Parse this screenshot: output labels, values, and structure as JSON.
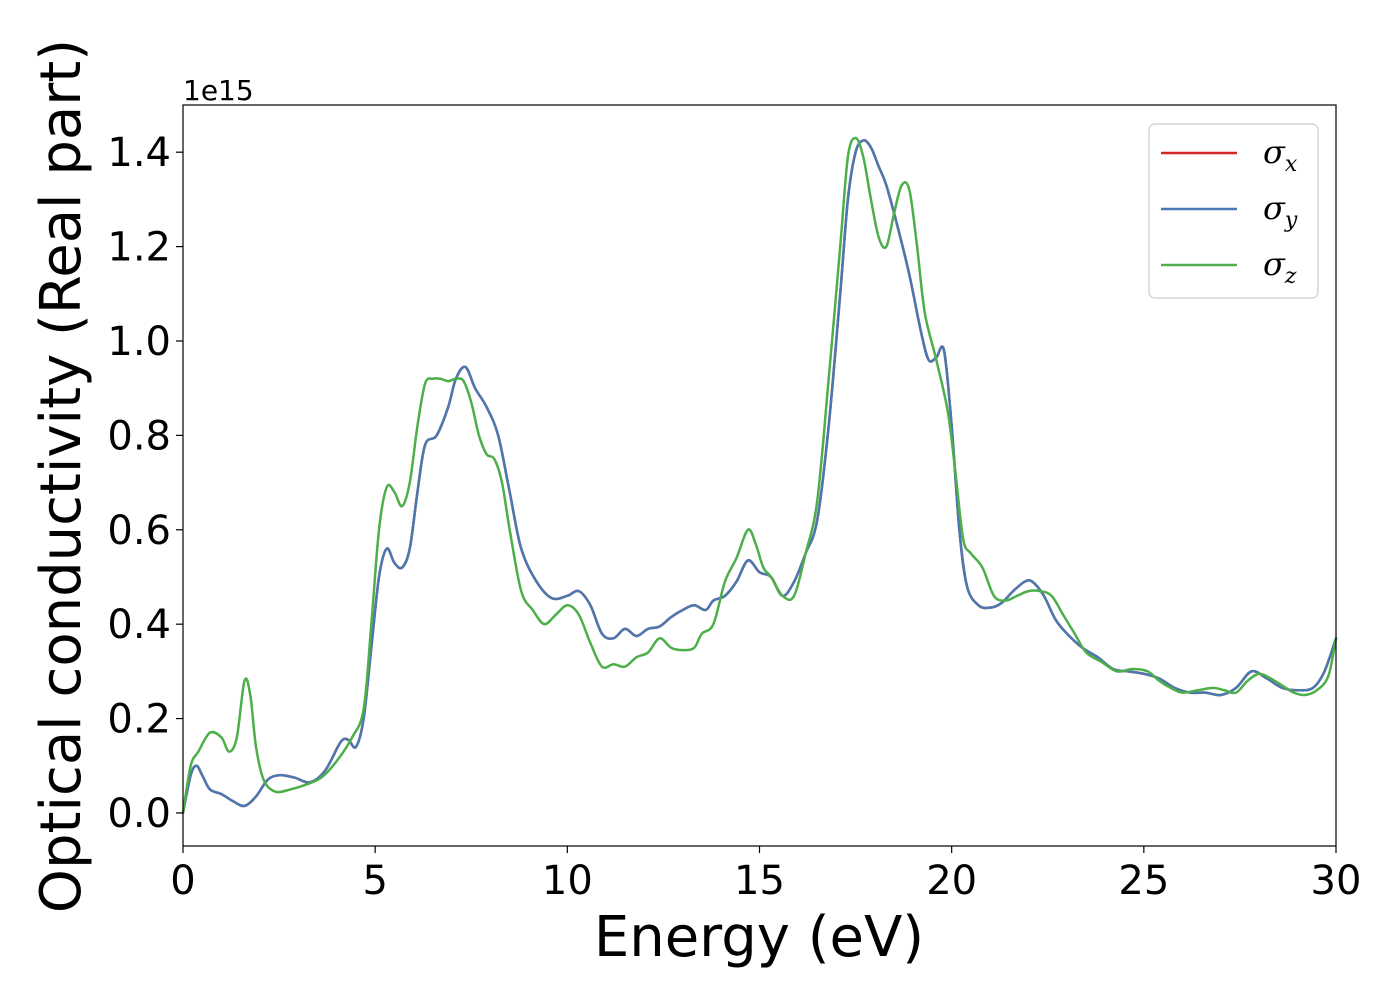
{
  "chart_data": {
    "type": "line",
    "xlabel": "Energy (eV)",
    "ylabel": "Optical conductivity (Real part)",
    "y_offset_label": "1e15",
    "xlim": [
      0,
      30
    ],
    "ylim": [
      -0.07,
      1.5
    ],
    "x_ticks": [
      0,
      5,
      10,
      15,
      20,
      25,
      30
    ],
    "x_tick_labels": [
      "0",
      "5",
      "10",
      "15",
      "20",
      "25",
      "30"
    ],
    "y_ticks": [
      0.0,
      0.2,
      0.4,
      0.6,
      0.8,
      1.0,
      1.2,
      1.4
    ],
    "y_tick_labels": [
      "0.0",
      "0.2",
      "0.4",
      "0.6",
      "0.8",
      "1.0",
      "1.2",
      "1.4"
    ],
    "grid": false,
    "legend_position": "top-right",
    "legend": [
      {
        "symbol": "σ",
        "subscript": "x",
        "color": "#d62728"
      },
      {
        "symbol": "σ",
        "subscript": "y",
        "color": "#4a78b0"
      },
      {
        "symbol": "σ",
        "subscript": "z",
        "color": "#4daf4a"
      }
    ],
    "series": [
      {
        "color": "#d62728",
        "x": [
          0,
          0.2,
          0.35,
          0.5,
          0.7,
          1.0,
          1.3,
          1.6,
          1.9,
          2.2,
          2.5,
          2.9,
          3.3,
          3.7,
          4.1,
          4.3,
          4.5,
          4.7,
          4.9,
          5.1,
          5.3,
          5.5,
          5.7,
          5.9,
          6.1,
          6.3,
          6.6,
          6.9,
          7.1,
          7.35,
          7.6,
          7.9,
          8.2,
          8.5,
          8.8,
          9.2,
          9.6,
          10.0,
          10.3,
          10.6,
          10.9,
          11.2,
          11.5,
          11.8,
          12.1,
          12.4,
          12.7,
          13.0,
          13.3,
          13.6,
          13.8,
          14.1,
          14.4,
          14.7,
          15.0,
          15.3,
          15.6,
          15.9,
          16.2,
          16.5,
          16.8,
          17.1,
          17.3,
          17.5,
          17.7,
          17.9,
          18.1,
          18.3,
          18.6,
          18.9,
          19.2,
          19.4,
          19.6,
          19.8,
          20.0,
          20.2,
          20.4,
          20.7,
          21.0,
          21.3,
          21.6,
          21.9,
          22.1,
          22.4,
          22.7,
          23.0,
          23.4,
          23.8,
          24.2,
          24.6,
          25.0,
          25.4,
          25.8,
          26.2,
          26.6,
          27.0,
          27.4,
          27.8,
          28.2,
          28.6,
          29.0,
          29.4,
          29.7,
          30.0
        ],
        "y": [
          0,
          0.08,
          0.1,
          0.08,
          0.05,
          0.04,
          0.025,
          0.015,
          0.035,
          0.07,
          0.08,
          0.075,
          0.065,
          0.09,
          0.15,
          0.155,
          0.14,
          0.2,
          0.35,
          0.5,
          0.56,
          0.53,
          0.52,
          0.56,
          0.68,
          0.78,
          0.8,
          0.86,
          0.92,
          0.945,
          0.9,
          0.86,
          0.8,
          0.68,
          0.56,
          0.49,
          0.455,
          0.46,
          0.47,
          0.44,
          0.38,
          0.37,
          0.39,
          0.375,
          0.39,
          0.395,
          0.415,
          0.43,
          0.44,
          0.43,
          0.45,
          0.46,
          0.49,
          0.535,
          0.51,
          0.5,
          0.46,
          0.49,
          0.55,
          0.62,
          0.82,
          1.1,
          1.3,
          1.4,
          1.425,
          1.41,
          1.37,
          1.33,
          1.24,
          1.14,
          1.02,
          0.96,
          0.965,
          0.98,
          0.82,
          0.6,
          0.48,
          0.44,
          0.435,
          0.445,
          0.47,
          0.49,
          0.49,
          0.46,
          0.41,
          0.38,
          0.35,
          0.33,
          0.305,
          0.3,
          0.295,
          0.285,
          0.265,
          0.255,
          0.255,
          0.25,
          0.265,
          0.3,
          0.285,
          0.265,
          0.26,
          0.265,
          0.3,
          0.37
        ]
      },
      {
        "color": "#4a78b0",
        "x": [
          0,
          0.2,
          0.35,
          0.5,
          0.7,
          1.0,
          1.3,
          1.6,
          1.9,
          2.2,
          2.5,
          2.9,
          3.3,
          3.7,
          4.1,
          4.3,
          4.5,
          4.7,
          4.9,
          5.1,
          5.3,
          5.5,
          5.7,
          5.9,
          6.1,
          6.3,
          6.6,
          6.9,
          7.1,
          7.35,
          7.6,
          7.9,
          8.2,
          8.5,
          8.8,
          9.2,
          9.6,
          10.0,
          10.3,
          10.6,
          10.9,
          11.2,
          11.5,
          11.8,
          12.1,
          12.4,
          12.7,
          13.0,
          13.3,
          13.6,
          13.8,
          14.1,
          14.4,
          14.7,
          15.0,
          15.3,
          15.6,
          15.9,
          16.2,
          16.5,
          16.8,
          17.1,
          17.3,
          17.5,
          17.7,
          17.9,
          18.1,
          18.3,
          18.6,
          18.9,
          19.2,
          19.4,
          19.6,
          19.8,
          20.0,
          20.2,
          20.4,
          20.7,
          21.0,
          21.3,
          21.6,
          21.9,
          22.1,
          22.4,
          22.7,
          23.0,
          23.4,
          23.8,
          24.2,
          24.6,
          25.0,
          25.4,
          25.8,
          26.2,
          26.6,
          27.0,
          27.4,
          27.8,
          28.2,
          28.6,
          29.0,
          29.4,
          29.7,
          30.0
        ],
        "y": [
          0,
          0.08,
          0.1,
          0.08,
          0.05,
          0.04,
          0.025,
          0.015,
          0.035,
          0.07,
          0.08,
          0.075,
          0.065,
          0.09,
          0.15,
          0.155,
          0.14,
          0.2,
          0.35,
          0.5,
          0.56,
          0.53,
          0.52,
          0.56,
          0.68,
          0.78,
          0.8,
          0.86,
          0.92,
          0.945,
          0.9,
          0.86,
          0.8,
          0.68,
          0.56,
          0.49,
          0.455,
          0.46,
          0.47,
          0.44,
          0.38,
          0.37,
          0.39,
          0.375,
          0.39,
          0.395,
          0.415,
          0.43,
          0.44,
          0.43,
          0.45,
          0.46,
          0.49,
          0.535,
          0.51,
          0.5,
          0.46,
          0.49,
          0.55,
          0.62,
          0.82,
          1.1,
          1.3,
          1.4,
          1.425,
          1.41,
          1.37,
          1.33,
          1.24,
          1.14,
          1.02,
          0.96,
          0.965,
          0.98,
          0.82,
          0.6,
          0.48,
          0.44,
          0.435,
          0.445,
          0.47,
          0.49,
          0.49,
          0.46,
          0.41,
          0.38,
          0.35,
          0.33,
          0.305,
          0.3,
          0.295,
          0.285,
          0.265,
          0.255,
          0.255,
          0.25,
          0.265,
          0.3,
          0.285,
          0.265,
          0.26,
          0.265,
          0.3,
          0.37
        ]
      },
      {
        "color": "#4daf4a",
        "x": [
          0,
          0.2,
          0.4,
          0.7,
          1.0,
          1.2,
          1.4,
          1.6,
          1.75,
          1.9,
          2.1,
          2.4,
          2.8,
          3.2,
          3.6,
          4.0,
          4.4,
          4.7,
          4.9,
          5.1,
          5.3,
          5.5,
          5.7,
          5.9,
          6.1,
          6.3,
          6.5,
          6.7,
          6.9,
          7.1,
          7.3,
          7.5,
          7.7,
          7.9,
          8.1,
          8.3,
          8.5,
          8.8,
          9.1,
          9.4,
          9.7,
          10.0,
          10.3,
          10.6,
          10.9,
          11.2,
          11.5,
          11.8,
          12.1,
          12.4,
          12.7,
          13.0,
          13.3,
          13.5,
          13.8,
          14.1,
          14.4,
          14.7,
          14.9,
          15.1,
          15.3,
          15.6,
          15.9,
          16.2,
          16.5,
          16.8,
          17.1,
          17.3,
          17.5,
          17.7,
          17.9,
          18.1,
          18.3,
          18.5,
          18.7,
          18.9,
          19.1,
          19.3,
          19.6,
          19.9,
          20.1,
          20.3,
          20.5,
          20.8,
          21.1,
          21.4,
          21.7,
          22.0,
          22.3,
          22.6,
          22.9,
          23.2,
          23.5,
          23.9,
          24.3,
          24.7,
          25.1,
          25.4,
          25.7,
          26.0,
          26.4,
          26.8,
          27.1,
          27.4,
          27.7,
          28.0,
          28.3,
          28.6,
          28.9,
          29.2,
          29.5,
          29.8,
          30.0
        ],
        "y": [
          0,
          0.1,
          0.13,
          0.17,
          0.16,
          0.13,
          0.16,
          0.28,
          0.25,
          0.14,
          0.07,
          0.045,
          0.05,
          0.06,
          0.075,
          0.11,
          0.16,
          0.22,
          0.4,
          0.6,
          0.69,
          0.68,
          0.65,
          0.7,
          0.82,
          0.91,
          0.92,
          0.92,
          0.915,
          0.92,
          0.915,
          0.87,
          0.8,
          0.76,
          0.75,
          0.7,
          0.6,
          0.47,
          0.43,
          0.4,
          0.42,
          0.44,
          0.42,
          0.36,
          0.31,
          0.315,
          0.31,
          0.33,
          0.34,
          0.37,
          0.35,
          0.345,
          0.35,
          0.38,
          0.4,
          0.49,
          0.54,
          0.6,
          0.57,
          0.52,
          0.5,
          0.46,
          0.46,
          0.55,
          0.66,
          0.92,
          1.2,
          1.39,
          1.43,
          1.39,
          1.3,
          1.22,
          1.2,
          1.27,
          1.33,
          1.32,
          1.2,
          1.06,
          0.96,
          0.85,
          0.72,
          0.58,
          0.55,
          0.52,
          0.46,
          0.45,
          0.46,
          0.47,
          0.47,
          0.46,
          0.42,
          0.38,
          0.34,
          0.32,
          0.3,
          0.305,
          0.3,
          0.28,
          0.265,
          0.255,
          0.26,
          0.265,
          0.26,
          0.255,
          0.28,
          0.295,
          0.285,
          0.27,
          0.255,
          0.25,
          0.26,
          0.29,
          0.37
        ]
      }
    ]
  }
}
